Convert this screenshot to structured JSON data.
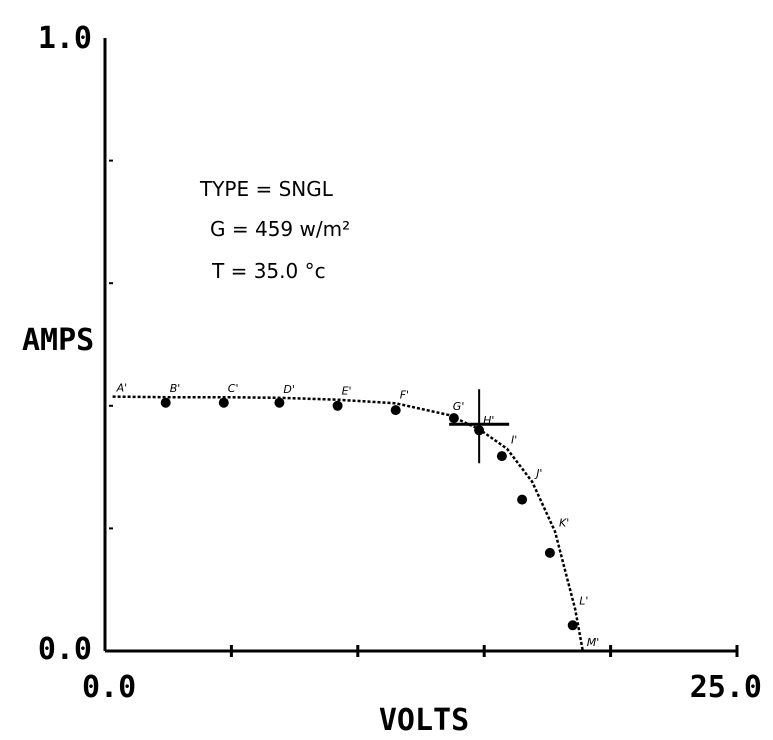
{
  "chart_data": {
    "type": "scatter",
    "title": "",
    "xlabel": "VOLTS",
    "ylabel": "AMPS",
    "xlim": [
      0.0,
      25.0
    ],
    "ylim": [
      0.0,
      1.0
    ],
    "x_tick_labels": [
      "0.0",
      "25.0"
    ],
    "y_tick_labels": [
      "0.0",
      "1.0"
    ],
    "grid": false,
    "legend": "none",
    "annotations": [
      "TYPE = SNGL",
      "G = 459 w/m²",
      "T = 35.0 °c"
    ],
    "max_power_point": {
      "x": 14.8,
      "y": 0.365
    },
    "series": [
      {
        "labels": [
          "B'",
          "C'",
          "D'",
          "E'",
          "F'",
          "G'",
          "H'",
          "I'",
          "J'",
          "K'",
          "L'",
          "M'"
        ],
        "x": [
          2.4,
          4.7,
          6.9,
          9.2,
          11.5,
          13.8,
          14.8,
          15.7,
          16.5,
          17.6,
          18.5,
          18.9
        ],
        "y": [
          0.405,
          0.405,
          0.405,
          0.4,
          0.393,
          0.38,
          0.36,
          0.318,
          0.247,
          0.16,
          0.042,
          0.0
        ]
      },
      {
        "labels": [
          "A'",
          "B'",
          "C'",
          "D'",
          "E'",
          "F'",
          "G'",
          "H'",
          "I'",
          "J'",
          "K'",
          "L'",
          "M'"
        ],
        "x": [
          0.3,
          2.4,
          4.7,
          6.9,
          9.2,
          11.5,
          13.6,
          14.8,
          15.9,
          16.9,
          17.8,
          18.6,
          18.9
        ],
        "y": [
          0.415,
          0.414,
          0.414,
          0.413,
          0.41,
          0.404,
          0.385,
          0.362,
          0.33,
          0.276,
          0.195,
          0.068,
          0.0
        ]
      }
    ]
  }
}
